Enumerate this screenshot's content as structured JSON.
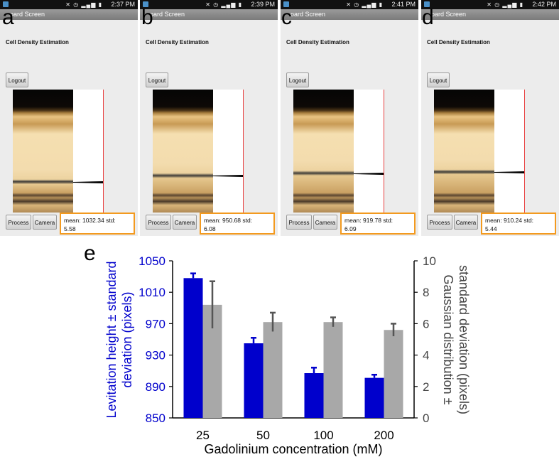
{
  "panels": [
    {
      "label": "a",
      "time": "2:37 PM",
      "app_title": "oard Screen",
      "heading": "Cell Density Estimation",
      "logout": "Logout",
      "process": "Process",
      "camera": "Camera",
      "result_line1": "mean: 1032.34  std:",
      "result_line2": "5.58",
      "band_level": 0.75
    },
    {
      "label": "b",
      "time": "2:39 PM",
      "app_title": "oard Screen",
      "heading": "Cell Density Estimation",
      "logout": "Logout",
      "process": "Process",
      "camera": "Camera",
      "result_line1": "mean: 950.68  std:",
      "result_line2": "6.08",
      "band_level": 0.7
    },
    {
      "label": "c",
      "time": "2:41 PM",
      "app_title": "oard Screen",
      "heading": "Cell Density Estimation",
      "logout": "Logout",
      "process": "Process",
      "camera": "Camera",
      "result_line1": "mean: 919.78  std:",
      "result_line2": "6.09",
      "band_level": 0.68
    },
    {
      "label": "d",
      "time": "2:42 PM",
      "app_title": "oard Screen",
      "heading": "Cell Density Estimation",
      "logout": "Logout",
      "process": "Process",
      "camera": "Camera",
      "result_line1": "mean: 910.24  std:",
      "result_line2": "5.44",
      "band_level": 0.67
    }
  ],
  "colors": {
    "primary": "#0000cc",
    "secondary": "#a8a8a8",
    "errorbar_secondary": "#555555",
    "result_border": "#f39a1f",
    "red_line": "#e84040"
  },
  "chart_label": "e",
  "chart_data": {
    "type": "bar",
    "categories": [
      "25",
      "50",
      "100",
      "200"
    ],
    "xlabel": "Gadolinium concentration (mM)",
    "ylabel_left": "Levitation height ± standard deviation (pixels)",
    "ylabel_left_line1": "Levitation height ± standard",
    "ylabel_left_line2": "deviation (pixels)",
    "ylabel_right": "Gaussian distribution ± standard deviation (pixels)",
    "ylabel_right_line1": "Gaussian distribution ±",
    "ylabel_right_line2": "standard deviation (pixels)",
    "ylim_left": [
      850,
      1050
    ],
    "yticks_left": [
      "850",
      "890",
      "930",
      "970",
      "1010",
      "1050"
    ],
    "ylim_right": [
      0,
      10
    ],
    "yticks_right": [
      "0",
      "2",
      "4",
      "6",
      "8",
      "10"
    ],
    "series": [
      {
        "name": "Levitation height",
        "axis": "left",
        "values": [
          1028,
          945,
          907,
          901
        ],
        "errors": [
          6,
          7,
          7,
          4
        ]
      },
      {
        "name": "Gaussian distribution",
        "axis": "right",
        "values": [
          7.2,
          6.1,
          6.1,
          5.6
        ],
        "errors": [
          1.5,
          0.6,
          0.3,
          0.4
        ]
      }
    ]
  }
}
